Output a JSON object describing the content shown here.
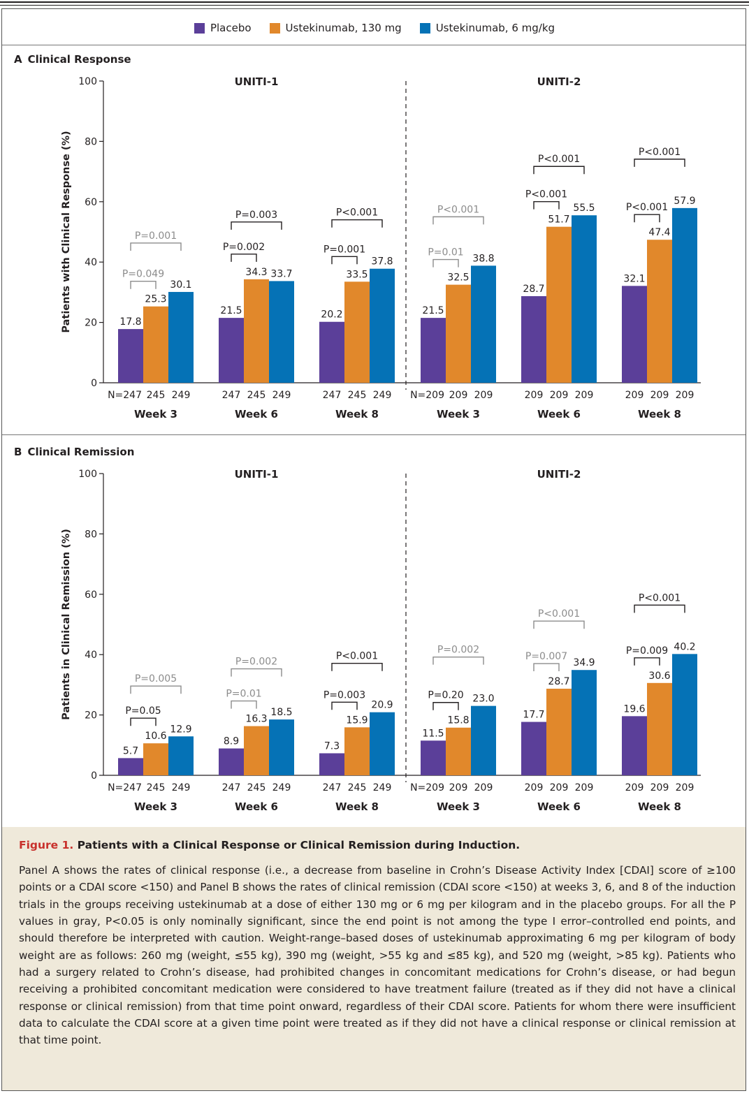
{
  "legend": [
    {
      "name": "Placebo",
      "color": "#5b3f99"
    },
    {
      "name": "Ustekinumab, 130 mg",
      "color": "#e1882b"
    },
    {
      "name": "Ustekinumab, 6 mg/kg",
      "color": "#0572b6"
    }
  ],
  "pvalue_gray_color": "#8c8c8c",
  "chart_data": [
    {
      "type": "bar",
      "panel_letter": "A",
      "panel_title": "Clinical Response",
      "ylabel": "Patients with Clinical Response (%)",
      "ylim": [
        0,
        100
      ],
      "yticks": [
        0,
        20,
        40,
        60,
        80,
        100
      ],
      "trials": [
        "UNITI-1",
        "UNITI-2"
      ],
      "categories": [
        "Week 3",
        "Week 6",
        "Week 8",
        "Week 3",
        "Week 6",
        "Week 8"
      ],
      "series": [
        {
          "name": "Placebo",
          "values": [
            17.8,
            21.5,
            20.2,
            21.5,
            28.7,
            32.1
          ]
        },
        {
          "name": "Ustekinumab, 130 mg",
          "values": [
            25.3,
            34.3,
            33.5,
            32.5,
            51.7,
            47.4
          ]
        },
        {
          "name": "Ustekinumab, 6 mg/kg",
          "values": [
            30.1,
            33.7,
            37.8,
            38.8,
            55.5,
            57.9
          ]
        }
      ],
      "value_labels": [
        [
          "17.8",
          "25.3",
          "30.1"
        ],
        [
          "21.5",
          "34.3",
          "33.7"
        ],
        [
          "20.2",
          "33.5",
          "37.8"
        ],
        [
          "21.5",
          "32.5",
          "38.8"
        ],
        [
          "28.7",
          "51.7",
          "55.5"
        ],
        [
          "32.1",
          "47.4",
          "57.9"
        ]
      ],
      "n_labels": [
        [
          "N=247",
          "245",
          "249"
        ],
        [
          "247",
          "245",
          "249"
        ],
        [
          "247",
          "245",
          "249"
        ],
        [
          "N=209",
          "209",
          "209"
        ],
        [
          "209",
          "209",
          "209"
        ],
        [
          "209",
          "209",
          "209"
        ]
      ],
      "comparisons": [
        {
          "group": 0,
          "low": {
            "text": "P=0.049",
            "gray": true
          },
          "high": {
            "text": "P=0.001",
            "gray": true
          }
        },
        {
          "group": 1,
          "low": {
            "text": "P=0.002",
            "gray": false
          },
          "high": {
            "text": "P=0.003",
            "gray": false
          }
        },
        {
          "group": 2,
          "low": {
            "text": "P=0.001",
            "gray": false
          },
          "high": {
            "text": "P<0.001",
            "gray": false
          }
        },
        {
          "group": 3,
          "low": {
            "text": "P=0.01",
            "gray": true
          },
          "high": {
            "text": "P<0.001",
            "gray": true
          }
        },
        {
          "group": 4,
          "low": {
            "text": "P<0.001",
            "gray": false
          },
          "high": {
            "text": "P<0.001",
            "gray": false
          }
        },
        {
          "group": 5,
          "low": {
            "text": "P<0.001",
            "gray": false
          },
          "high": {
            "text": "P<0.001",
            "gray": false
          }
        }
      ]
    },
    {
      "type": "bar",
      "panel_letter": "B",
      "panel_title": "Clinical Remission",
      "ylabel": "Patients in Clinical Remission (%)",
      "ylim": [
        0,
        100
      ],
      "yticks": [
        0,
        20,
        40,
        60,
        80,
        100
      ],
      "trials": [
        "UNITI-1",
        "UNITI-2"
      ],
      "categories": [
        "Week 3",
        "Week 6",
        "Week 8",
        "Week 3",
        "Week 6",
        "Week 8"
      ],
      "series": [
        {
          "name": "Placebo",
          "values": [
            5.7,
            8.9,
            7.3,
            11.5,
            17.7,
            19.6
          ]
        },
        {
          "name": "Ustekinumab, 130 mg",
          "values": [
            10.6,
            16.3,
            15.9,
            15.8,
            28.7,
            30.6
          ]
        },
        {
          "name": "Ustekinumab, 6 mg/kg",
          "values": [
            12.9,
            18.5,
            20.9,
            23.0,
            34.9,
            40.2
          ]
        }
      ],
      "value_labels": [
        [
          "5.7",
          "10.6",
          "12.9"
        ],
        [
          "8.9",
          "16.3",
          "18.5"
        ],
        [
          "7.3",
          "15.9",
          "20.9"
        ],
        [
          "11.5",
          "15.8",
          "23.0"
        ],
        [
          "17.7",
          "28.7",
          "34.9"
        ],
        [
          "19.6",
          "30.6",
          "40.2"
        ]
      ],
      "n_labels": [
        [
          "N=247",
          "245",
          "249"
        ],
        [
          "247",
          "245",
          "249"
        ],
        [
          "247",
          "245",
          "249"
        ],
        [
          "N=209",
          "209",
          "209"
        ],
        [
          "209",
          "209",
          "209"
        ],
        [
          "209",
          "209",
          "209"
        ]
      ],
      "comparisons": [
        {
          "group": 0,
          "low": {
            "text": "P=0.05",
            "gray": false
          },
          "high": {
            "text": "P=0.005",
            "gray": true
          }
        },
        {
          "group": 1,
          "low": {
            "text": "P=0.01",
            "gray": true
          },
          "high": {
            "text": "P=0.002",
            "gray": true
          }
        },
        {
          "group": 2,
          "low": {
            "text": "P=0.003",
            "gray": false
          },
          "high": {
            "text": "P<0.001",
            "gray": false
          }
        },
        {
          "group": 3,
          "low": {
            "text": "P=0.20",
            "gray": false
          },
          "high": {
            "text": "P=0.002",
            "gray": true
          }
        },
        {
          "group": 4,
          "low": {
            "text": "P=0.007",
            "gray": true
          },
          "high": {
            "text": "P<0.001",
            "gray": true
          }
        },
        {
          "group": 5,
          "low": {
            "text": "P=0.009",
            "gray": false
          },
          "high": {
            "text": "P<0.001",
            "gray": false
          }
        }
      ]
    }
  ],
  "caption": {
    "figure_number": "Figure 1.",
    "title": "Patients with a Clinical Response or Clinical Remission during Induction.",
    "body": "Panel A shows the rates of clinical response (i.e., a decrease from baseline in Crohn’s Disease Activity Index [CDAI] score of ≥100 points or a CDAI score <150) and Panel B shows the rates of clinical remission (CDAI score <150) at weeks 3, 6, and 8 of the induction trials in the groups receiving ustekinumab at a dose of either 130 mg or 6 mg per kilogram and in the placebo groups. For all the P values in gray, P<0.05 is only nominally significant, since the end point is not among the type I error–controlled end points, and should therefore be interpreted with caution. Weight-range–based doses of ustekinumab approximating 6 mg per kilogram of body weight are as follows: 260 mg (weight, ≤55 kg), 390 mg (weight, >55 kg and ≤85 kg), and 520 mg (weight, >85 kg). Patients who had a surgery related to Crohn’s disease, had prohibited changes in concomitant medications for Crohn’s disease, or had begun receiving a prohibited concomitant medication were considered to have treatment failure (treated as if they did not have a clinical response or clinical remission) from that time point onward, regardless of their CDAI score. Patients for whom there were insufficient data to calculate the CDAI score at a given time point were treated as if they did not have a clinical response or clinical remission at that time point."
  }
}
